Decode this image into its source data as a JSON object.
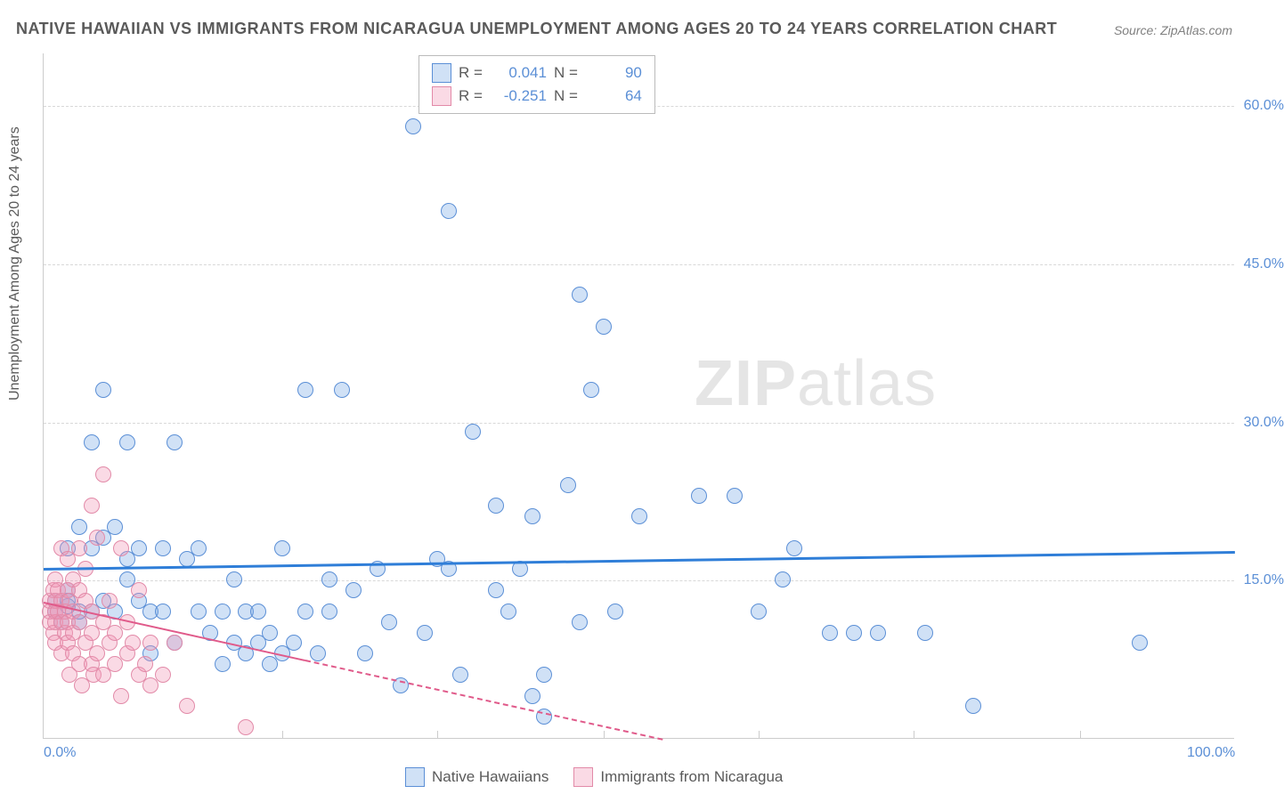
{
  "title": "NATIVE HAWAIIAN VS IMMIGRANTS FROM NICARAGUA UNEMPLOYMENT AMONG AGES 20 TO 24 YEARS CORRELATION CHART",
  "source": "Source: ZipAtlas.com",
  "ylabel": "Unemployment Among Ages 20 to 24 years",
  "watermark": {
    "bold": "ZIP",
    "rest": "atlas"
  },
  "chart": {
    "type": "scatter",
    "background_color": "#ffffff",
    "grid_color": "#d8d8d8",
    "axis_color": "#cccccc",
    "tick_color": "#5b8fd6",
    "label_color": "#5a5a5a",
    "title_fontsize": 18,
    "label_fontsize": 16,
    "tick_fontsize": 16,
    "xlim": [
      0,
      100
    ],
    "ylim": [
      0,
      65
    ],
    "yticks": [
      {
        "v": 15,
        "label": "15.0%"
      },
      {
        "v": 30,
        "label": "30.0%"
      },
      {
        "v": 45,
        "label": "45.0%"
      },
      {
        "v": 60,
        "label": "60.0%"
      }
    ],
    "xticks": [
      {
        "v": 0,
        "label": "0.0%"
      },
      {
        "v": 100,
        "label": "100.0%"
      }
    ],
    "xgrid_minor": [
      20,
      33,
      47,
      60,
      73,
      87
    ],
    "marker_radius": 9,
    "marker_border_width": 1.2,
    "series": [
      {
        "name": "Native Hawaiians",
        "fill": "rgba(120,170,230,0.35)",
        "stroke": "#5b8fd6",
        "trend": {
          "y_at_x0": 16.2,
          "y_at_x100": 17.8,
          "color": "#2f7ed8",
          "width": 3
        },
        "R": "0.041",
        "N": "90",
        "points": [
          [
            1,
            12
          ],
          [
            1,
            13
          ],
          [
            1.5,
            11
          ],
          [
            2,
            12.5
          ],
          [
            2,
            14
          ],
          [
            2,
            13
          ],
          [
            2,
            18
          ],
          [
            3,
            11
          ],
          [
            3,
            12
          ],
          [
            3,
            20
          ],
          [
            4,
            18
          ],
          [
            4,
            12
          ],
          [
            4,
            28
          ],
          [
            5,
            33
          ],
          [
            5,
            13
          ],
          [
            5,
            19
          ],
          [
            6,
            12
          ],
          [
            6,
            20
          ],
          [
            7,
            15
          ],
          [
            7,
            17
          ],
          [
            7,
            28
          ],
          [
            8,
            13
          ],
          [
            8,
            18
          ],
          [
            9,
            12
          ],
          [
            9,
            8
          ],
          [
            10,
            18
          ],
          [
            10,
            12
          ],
          [
            11,
            28
          ],
          [
            11,
            9
          ],
          [
            12,
            17
          ],
          [
            13,
            12
          ],
          [
            13,
            18
          ],
          [
            14,
            10
          ],
          [
            15,
            7
          ],
          [
            15,
            12
          ],
          [
            16,
            15
          ],
          [
            16,
            9
          ],
          [
            17,
            8
          ],
          [
            17,
            12
          ],
          [
            18,
            9
          ],
          [
            18,
            12
          ],
          [
            19,
            10
          ],
          [
            19,
            7
          ],
          [
            20,
            8
          ],
          [
            20,
            18
          ],
          [
            21,
            9
          ],
          [
            22,
            33
          ],
          [
            22,
            12
          ],
          [
            23,
            8
          ],
          [
            24,
            15
          ],
          [
            24,
            12
          ],
          [
            25,
            33
          ],
          [
            26,
            14
          ],
          [
            27,
            8
          ],
          [
            28,
            16
          ],
          [
            29,
            11
          ],
          [
            30,
            5
          ],
          [
            31,
            58
          ],
          [
            32,
            10
          ],
          [
            33,
            17
          ],
          [
            34,
            16
          ],
          [
            34,
            50
          ],
          [
            35,
            6
          ],
          [
            36,
            29
          ],
          [
            38,
            14
          ],
          [
            38,
            22
          ],
          [
            39,
            12
          ],
          [
            40,
            16
          ],
          [
            41,
            21
          ],
          [
            41,
            4
          ],
          [
            42,
            6
          ],
          [
            42,
            2
          ],
          [
            44,
            24
          ],
          [
            45,
            11
          ],
          [
            45,
            42
          ],
          [
            46,
            33
          ],
          [
            47,
            39
          ],
          [
            48,
            12
          ],
          [
            50,
            21
          ],
          [
            55,
            23
          ],
          [
            58,
            23
          ],
          [
            60,
            12
          ],
          [
            62,
            15
          ],
          [
            63,
            18
          ],
          [
            66,
            10
          ],
          [
            68,
            10
          ],
          [
            70,
            10
          ],
          [
            74,
            10
          ],
          [
            78,
            3
          ],
          [
            92,
            9
          ]
        ]
      },
      {
        "name": "Immigrants from Nicaragua",
        "fill": "rgba(240,150,180,0.35)",
        "stroke": "#e28aa8",
        "trend": {
          "y_at_x0": 13.0,
          "y_at_x100": -12.0,
          "color": "#e05a8a",
          "width": 2.5,
          "dash_after_x": 22
        },
        "R": "-0.251",
        "N": "64",
        "points": [
          [
            0.5,
            12
          ],
          [
            0.5,
            13
          ],
          [
            0.5,
            11
          ],
          [
            0.8,
            14
          ],
          [
            0.8,
            10
          ],
          [
            1,
            12
          ],
          [
            1,
            13
          ],
          [
            1,
            11
          ],
          [
            1,
            15
          ],
          [
            1,
            9
          ],
          [
            1.2,
            12
          ],
          [
            1.2,
            14
          ],
          [
            1.5,
            18
          ],
          [
            1.5,
            11
          ],
          [
            1.5,
            13
          ],
          [
            1.5,
            8
          ],
          [
            1.8,
            10
          ],
          [
            1.8,
            12
          ],
          [
            2,
            14
          ],
          [
            2,
            11
          ],
          [
            2,
            17
          ],
          [
            2,
            9
          ],
          [
            2.2,
            13
          ],
          [
            2.2,
            6
          ],
          [
            2.5,
            10
          ],
          [
            2.5,
            12
          ],
          [
            2.5,
            15
          ],
          [
            2.5,
            8
          ],
          [
            3,
            18
          ],
          [
            3,
            11
          ],
          [
            3,
            7
          ],
          [
            3,
            14
          ],
          [
            3.2,
            5
          ],
          [
            3.5,
            9
          ],
          [
            3.5,
            13
          ],
          [
            3.5,
            16
          ],
          [
            4,
            10
          ],
          [
            4,
            7
          ],
          [
            4,
            12
          ],
          [
            4,
            22
          ],
          [
            4.2,
            6
          ],
          [
            4.5,
            19
          ],
          [
            4.5,
            8
          ],
          [
            5,
            11
          ],
          [
            5,
            6
          ],
          [
            5,
            25
          ],
          [
            5.5,
            9
          ],
          [
            5.5,
            13
          ],
          [
            6,
            7
          ],
          [
            6,
            10
          ],
          [
            6.5,
            18
          ],
          [
            6.5,
            4
          ],
          [
            7,
            8
          ],
          [
            7,
            11
          ],
          [
            7.5,
            9
          ],
          [
            8,
            6
          ],
          [
            8,
            14
          ],
          [
            8.5,
            7
          ],
          [
            9,
            5
          ],
          [
            9,
            9
          ],
          [
            10,
            6
          ],
          [
            11,
            9
          ],
          [
            12,
            3
          ],
          [
            17,
            1
          ]
        ]
      }
    ]
  },
  "legend_top": {
    "r_label": "R =",
    "n_label": "N ="
  },
  "legend_bottom_labels": [
    "Native Hawaiians",
    "Immigrants from Nicaragua"
  ]
}
